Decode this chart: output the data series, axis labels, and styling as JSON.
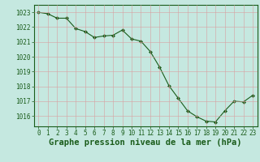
{
  "x": [
    0,
    1,
    2,
    3,
    4,
    5,
    6,
    7,
    8,
    9,
    10,
    11,
    12,
    13,
    14,
    15,
    16,
    17,
    18,
    19,
    20,
    21,
    22,
    23
  ],
  "y": [
    1023.0,
    1022.9,
    1022.6,
    1022.6,
    1021.9,
    1021.7,
    1021.3,
    1021.4,
    1021.45,
    1021.8,
    1021.2,
    1021.05,
    1020.35,
    1019.3,
    1018.05,
    1017.2,
    1016.35,
    1015.95,
    1015.65,
    1015.6,
    1016.35,
    1017.0,
    1016.95,
    1017.4
  ],
  "line_color": "#1a5c1a",
  "marker": "D",
  "marker_size": 2.0,
  "background_color": "#c5e8e0",
  "grid_color": "#b0c8c8",
  "ylim": [
    1015.3,
    1023.5
  ],
  "yticks": [
    1016,
    1017,
    1018,
    1019,
    1020,
    1021,
    1022,
    1023
  ],
  "xticks": [
    0,
    1,
    2,
    3,
    4,
    5,
    6,
    7,
    8,
    9,
    10,
    11,
    12,
    13,
    14,
    15,
    16,
    17,
    18,
    19,
    20,
    21,
    22,
    23
  ],
  "xlabel": "Graphe pression niveau de la mer (hPa)",
  "xlabel_color": "#1a5c1a",
  "tick_color": "#1a5c1a",
  "tick_fontsize": 5.5,
  "xlabel_fontsize": 7.5
}
